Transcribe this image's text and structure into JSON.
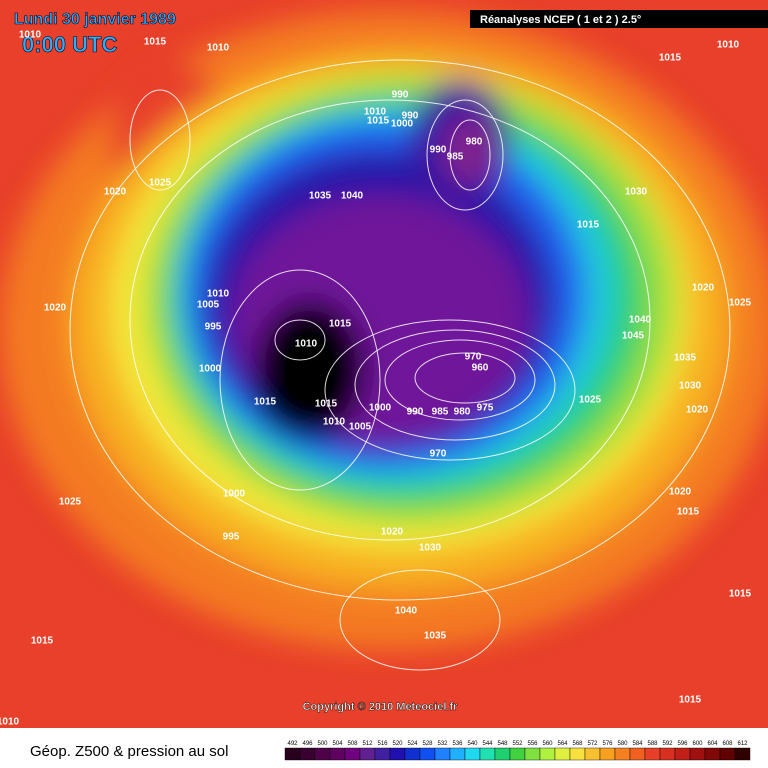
{
  "header": {
    "date": "Lundi 30 janvier 1989",
    "time": "0:00 UTC",
    "source": "Réanalyses NCEP ( 1 et 2 ) 2.5°"
  },
  "map": {
    "isobar_labels": [
      1010,
      1015,
      1010,
      1010,
      1015,
      990,
      1010,
      1015,
      990,
      1000,
      980,
      990,
      985,
      1020,
      1025,
      1035,
      1040,
      1030,
      1015,
      1020,
      1010,
      1005,
      995,
      1010,
      1015,
      1020,
      1025,
      1040,
      1045,
      1035,
      1000,
      970,
      960,
      1030,
      1025,
      1015,
      1015,
      1020,
      1000,
      990,
      985,
      980,
      975,
      1010,
      1005,
      970,
      1000,
      1020,
      1015,
      1025,
      995,
      1020,
      1030,
      1040,
      1035,
      1015,
      1015,
      1015,
      1010
    ],
    "copyright": "Copyright © 2010 Meteociel.fr"
  },
  "footer": {
    "caption": "Géop. Z500 & pression au sol",
    "colorbar": [
      492,
      496,
      500,
      504,
      508,
      512,
      516,
      520,
      524,
      528,
      532,
      536,
      540,
      544,
      548,
      552,
      556,
      560,
      564,
      568,
      572,
      576,
      580,
      584,
      588,
      592,
      596,
      600,
      604,
      608,
      612
    ]
  }
}
